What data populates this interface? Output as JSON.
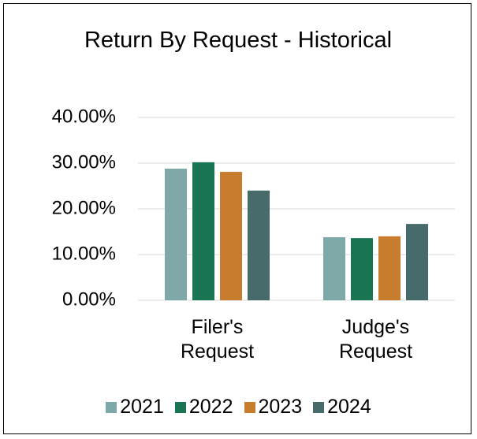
{
  "chart_data": {
    "type": "bar",
    "title": "Return By Request - Historical",
    "categories": [
      "Filer's Request",
      "Judge's Request"
    ],
    "series": [
      {
        "name": "2021",
        "color": "#7fa8a8",
        "values": [
          28.8,
          13.8
        ]
      },
      {
        "name": "2022",
        "color": "#1a7552",
        "values": [
          30.2,
          13.6
        ]
      },
      {
        "name": "2023",
        "color": "#c87d2e",
        "values": [
          28.1,
          14.0
        ]
      },
      {
        "name": "2024",
        "color": "#476a6a",
        "values": [
          24.0,
          16.7
        ]
      }
    ],
    "ylim": [
      0,
      40
    ],
    "yticks": [
      {
        "value": 0,
        "label": "0.00%"
      },
      {
        "value": 10,
        "label": "10.00%"
      },
      {
        "value": 20,
        "label": "20.00%"
      },
      {
        "value": 30,
        "label": "30.00%"
      },
      {
        "value": 40,
        "label": "40.00%"
      }
    ],
    "grid": true,
    "legend": "bottom"
  }
}
